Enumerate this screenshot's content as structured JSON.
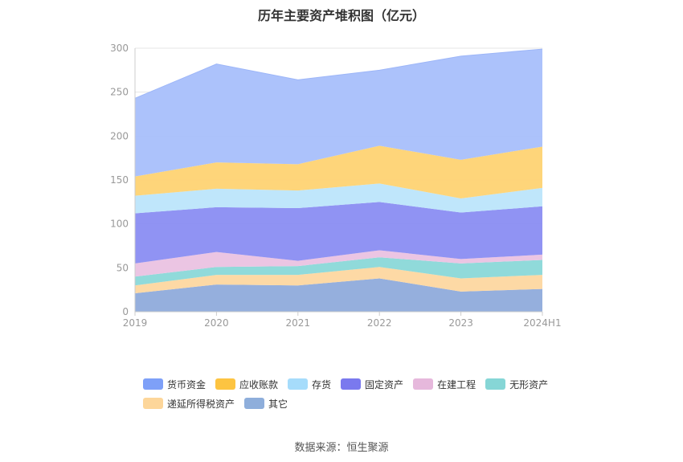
{
  "chart_data": {
    "type": "area",
    "stacked": true,
    "title": "历年主要资产堆积图（亿元）",
    "categories": [
      "2019",
      "2020",
      "2021",
      "2022",
      "2023",
      "2024H1"
    ],
    "ylim": [
      0,
      300
    ],
    "yticks": [
      0,
      50,
      100,
      150,
      200,
      250,
      300
    ],
    "grid": true,
    "legend_position": "bottom",
    "series": [
      {
        "name": "其它",
        "color": "#8fabdb",
        "values": [
          21,
          31,
          30,
          38,
          23,
          26
        ]
      },
      {
        "name": "递延所得税资产",
        "color": "#fdd7a0",
        "values": [
          9,
          11,
          12,
          13,
          15,
          16
        ]
      },
      {
        "name": "无形资产",
        "color": "#8ad8d8",
        "values": [
          10,
          9,
          10,
          11,
          17,
          17
        ]
      },
      {
        "name": "在建工程",
        "color": "#eac2e1",
        "values": [
          15,
          17,
          6,
          8,
          5,
          6
        ]
      },
      {
        "name": "固定资产",
        "color": "#8a8df2",
        "values": [
          57,
          51,
          60,
          55,
          53,
          55
        ]
      },
      {
        "name": "存货",
        "color": "#bce5fb",
        "values": [
          20,
          21,
          20,
          21,
          16,
          21
        ]
      },
      {
        "name": "应收账款",
        "color": "#fed373",
        "values": [
          22,
          30,
          30,
          43,
          44,
          47
        ]
      },
      {
        "name": "货币资金",
        "color": "#a8bffb",
        "values": [
          89,
          112,
          96,
          86,
          118,
          111
        ]
      }
    ],
    "legend_order": [
      "货币资金",
      "应收账款",
      "存货",
      "固定资产",
      "在建工程",
      "无形资产",
      "递延所得税资产",
      "其它"
    ],
    "legend_colors": {
      "货币资金": "#7ea0f8",
      "应收账款": "#fdc441",
      "存货": "#a6dcfb",
      "固定资产": "#7a79ee",
      "在建工程": "#e6b8dc",
      "无形资产": "#86d6d6",
      "递延所得税资产": "#fdd69a",
      "其它": "#8eaedb"
    }
  },
  "source": "数据来源：恒生聚源",
  "colors": {
    "axis_label": "#999999",
    "grid": "#e6e6e6",
    "axis_line": "#cccccc"
  }
}
